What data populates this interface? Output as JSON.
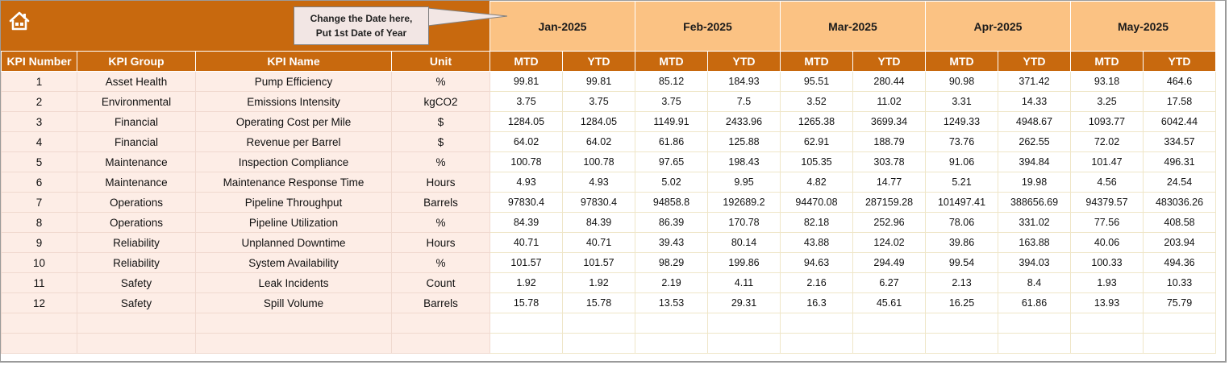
{
  "header": {
    "home_icon": "home-icon",
    "callout_line1": "Change the Date here,",
    "callout_line2": "Put 1st Date of Year",
    "months": [
      "Jan-2025",
      "Feb-2025",
      "Mar-2025",
      "Apr-2025",
      "May-2025"
    ]
  },
  "columns": {
    "kpi_number": "KPI Number",
    "kpi_group": "KPI Group",
    "kpi_name": "KPI Name",
    "unit": "Unit",
    "mtd": "MTD",
    "ytd": "YTD"
  },
  "colors": {
    "header_orange": "#c8690e",
    "month_band": "#fbc283",
    "kpi_cell_bg": "#fdede6"
  },
  "rows": [
    {
      "num": "1",
      "group": "Asset Health",
      "name": "Pump Efficiency",
      "unit": "%",
      "vals": [
        "99.81",
        "99.81",
        "85.12",
        "184.93",
        "95.51",
        "280.44",
        "90.98",
        "371.42",
        "93.18",
        "464.6"
      ]
    },
    {
      "num": "2",
      "group": "Environmental",
      "name": "Emissions Intensity",
      "unit": "kgCO2",
      "vals": [
        "3.75",
        "3.75",
        "3.75",
        "7.5",
        "3.52",
        "11.02",
        "3.31",
        "14.33",
        "3.25",
        "17.58"
      ]
    },
    {
      "num": "3",
      "group": "Financial",
      "name": "Operating Cost per Mile",
      "unit": "$",
      "vals": [
        "1284.05",
        "1284.05",
        "1149.91",
        "2433.96",
        "1265.38",
        "3699.34",
        "1249.33",
        "4948.67",
        "1093.77",
        "6042.44"
      ]
    },
    {
      "num": "4",
      "group": "Financial",
      "name": "Revenue per Barrel",
      "unit": "$",
      "vals": [
        "64.02",
        "64.02",
        "61.86",
        "125.88",
        "62.91",
        "188.79",
        "73.76",
        "262.55",
        "72.02",
        "334.57"
      ]
    },
    {
      "num": "5",
      "group": "Maintenance",
      "name": "Inspection Compliance",
      "unit": "%",
      "vals": [
        "100.78",
        "100.78",
        "97.65",
        "198.43",
        "105.35",
        "303.78",
        "91.06",
        "394.84",
        "101.47",
        "496.31"
      ]
    },
    {
      "num": "6",
      "group": "Maintenance",
      "name": "Maintenance Response Time",
      "unit": "Hours",
      "vals": [
        "4.93",
        "4.93",
        "5.02",
        "9.95",
        "4.82",
        "14.77",
        "5.21",
        "19.98",
        "4.56",
        "24.54"
      ]
    },
    {
      "num": "7",
      "group": "Operations",
      "name": "Pipeline Throughput",
      "unit": "Barrels",
      "vals": [
        "97830.4",
        "97830.4",
        "94858.8",
        "192689.2",
        "94470.08",
        "287159.28",
        "101497.41",
        "388656.69",
        "94379.57",
        "483036.26"
      ]
    },
    {
      "num": "8",
      "group": "Operations",
      "name": "Pipeline Utilization",
      "unit": "%",
      "vals": [
        "84.39",
        "84.39",
        "86.39",
        "170.78",
        "82.18",
        "252.96",
        "78.06",
        "331.02",
        "77.56",
        "408.58"
      ]
    },
    {
      "num": "9",
      "group": "Reliability",
      "name": "Unplanned Downtime",
      "unit": "Hours",
      "vals": [
        "40.71",
        "40.71",
        "39.43",
        "80.14",
        "43.88",
        "124.02",
        "39.86",
        "163.88",
        "40.06",
        "203.94"
      ]
    },
    {
      "num": "10",
      "group": "Reliability",
      "name": "System Availability",
      "unit": "%",
      "vals": [
        "101.57",
        "101.57",
        "98.29",
        "199.86",
        "94.63",
        "294.49",
        "99.54",
        "394.03",
        "100.33",
        "494.36"
      ]
    },
    {
      "num": "11",
      "group": "Safety",
      "name": "Leak Incidents",
      "unit": "Count",
      "vals": [
        "1.92",
        "1.92",
        "2.19",
        "4.11",
        "2.16",
        "6.27",
        "2.13",
        "8.4",
        "1.93",
        "10.33"
      ]
    },
    {
      "num": "12",
      "group": "Safety",
      "name": "Spill Volume",
      "unit": "Barrels",
      "vals": [
        "15.78",
        "15.78",
        "13.53",
        "29.31",
        "16.3",
        "45.61",
        "16.25",
        "61.86",
        "13.93",
        "75.79"
      ]
    }
  ]
}
